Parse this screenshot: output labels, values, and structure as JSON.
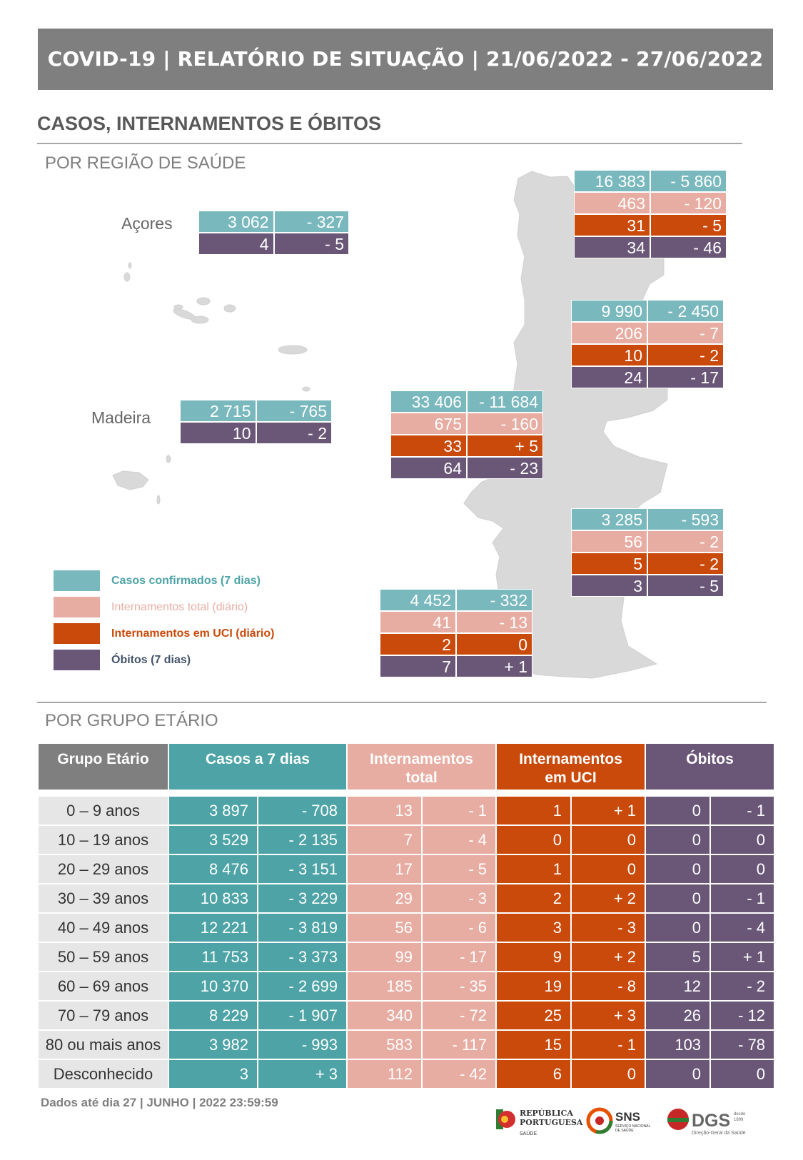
{
  "header": {
    "title": "COVID-19 | RELATÓRIO DE SITUAÇÃO | 21/06/2022 - 27/06/2022"
  },
  "section": {
    "title": "CASOS, INTERNAMENTOS E ÓBITOS"
  },
  "region_section": {
    "title": "POR REGIÃO DE SAÚDE"
  },
  "age_section": {
    "title": "POR GRUPO ETÁRIO"
  },
  "islands": [
    {
      "label": "Açores",
      "rows": [
        {
          "type": "cases",
          "value": "3 062",
          "change": "- 327"
        },
        {
          "type": "deaths",
          "value": "4",
          "change": "- 5"
        }
      ]
    },
    {
      "label": "Madeira",
      "rows": [
        {
          "type": "cases",
          "value": "2 715",
          "change": "- 765"
        },
        {
          "type": "deaths",
          "value": "10",
          "change": "- 2"
        }
      ]
    }
  ],
  "regions": [
    {
      "rows": [
        {
          "type": "cases",
          "value": "16 383",
          "change": "- 5 860"
        },
        {
          "type": "hosp",
          "value": "463",
          "change": "- 120"
        },
        {
          "type": "icu",
          "value": "31",
          "change": "- 5"
        },
        {
          "type": "deaths",
          "value": "34",
          "change": "- 46"
        }
      ]
    },
    {
      "rows": [
        {
          "type": "cases",
          "value": "9 990",
          "change": "- 2 450"
        },
        {
          "type": "hosp",
          "value": "206",
          "change": "- 7"
        },
        {
          "type": "icu",
          "value": "10",
          "change": "- 2"
        },
        {
          "type": "deaths",
          "value": "24",
          "change": "- 17"
        }
      ]
    },
    {
      "rows": [
        {
          "type": "cases",
          "value": "33 406",
          "change": "- 11 684"
        },
        {
          "type": "hosp",
          "value": "675",
          "change": "- 160"
        },
        {
          "type": "icu",
          "value": "33",
          "change": "+ 5"
        },
        {
          "type": "deaths",
          "value": "64",
          "change": "- 23"
        }
      ]
    },
    {
      "rows": [
        {
          "type": "cases",
          "value": "3 285",
          "change": "- 593"
        },
        {
          "type": "hosp",
          "value": "56",
          "change": "- 2"
        },
        {
          "type": "icu",
          "value": "5",
          "change": "- 2"
        },
        {
          "type": "deaths",
          "value": "3",
          "change": "- 5"
        }
      ]
    },
    {
      "rows": [
        {
          "type": "cases",
          "value": "4 452",
          "change": "- 332"
        },
        {
          "type": "hosp",
          "value": "41",
          "change": "- 13"
        },
        {
          "type": "icu",
          "value": "2",
          "change": "0"
        },
        {
          "type": "deaths",
          "value": "7",
          "change": "+ 1"
        }
      ]
    }
  ],
  "legend": [
    {
      "label": "Casos confirmados (7 dias)",
      "color": "#79b8bd",
      "text_color": "#4da3a6"
    },
    {
      "label": "Internamentos total (diário)",
      "color": "#e8ada2",
      "text_color": "#e8ada2"
    },
    {
      "label": "Internamentos em UCI (diário)",
      "color": "#c94a0b",
      "text_color": "#c94a0b"
    },
    {
      "label": "Óbitos (7 dias)",
      "color": "#6a5778",
      "text_color": "#44546a"
    }
  ],
  "age_table": {
    "headers": {
      "group": "Grupo Etário",
      "cases": "Casos a 7 dias",
      "hosp_line1": "Internamentos",
      "hosp_line2": "total",
      "icu_line1": "Internamentos",
      "icu_line2": "em UCI",
      "deaths": "Óbitos"
    },
    "rows": [
      [
        "0 – 9 anos",
        "3 897",
        "- 708",
        "13",
        "- 1",
        "1",
        "+ 1",
        "0",
        "- 1"
      ],
      [
        "10 – 19 anos",
        "3 529",
        "- 2 135",
        "7",
        "- 4",
        "0",
        "0",
        "0",
        "0"
      ],
      [
        "20 – 29 anos",
        "8 476",
        "- 3 151",
        "17",
        "- 5",
        "1",
        "0",
        "0",
        "0"
      ],
      [
        "30 – 39 anos",
        "10 833",
        "- 3 229",
        "29",
        "- 3",
        "2",
        "+ 2",
        "0",
        "- 1"
      ],
      [
        "40 – 49 anos",
        "12 221",
        "- 3 819",
        "56",
        "- 6",
        "3",
        "- 3",
        "0",
        "- 4"
      ],
      [
        "50 – 59 anos",
        "11 753",
        "- 3 373",
        "99",
        "- 17",
        "9",
        "+ 2",
        "5",
        "+ 1"
      ],
      [
        "60 – 69 anos",
        "10 370",
        "- 2 699",
        "185",
        "- 35",
        "19",
        "- 8",
        "12",
        "- 2"
      ],
      [
        "70 – 79 anos",
        "8 229",
        "- 1 907",
        "340",
        "- 72",
        "25",
        "+ 3",
        "26",
        "- 12"
      ],
      [
        "80 ou mais anos",
        "3 982",
        "- 993",
        "583",
        "- 117",
        "15",
        "- 1",
        "103",
        "- 78"
      ],
      [
        "Desconhecido",
        "3",
        "+ 3",
        "112",
        "- 42",
        "6",
        "0",
        "0",
        "0"
      ]
    ]
  },
  "footer": {
    "note": "Dados até dia 27 | JUNHO | 2022 23:59:59",
    "logo1_line1": "REPÚBLICA",
    "logo1_line2": "PORTUGUESA",
    "logo1_line3": "SAÚDE",
    "logo2_main": "SNS",
    "logo2_sub1": "SERVIÇO NACIONAL",
    "logo2_sub2": "DE SAÚDE",
    "logo3_main": "DGS",
    "logo3_small1": "desde",
    "logo3_small2": "1899",
    "logo3_sub": "Direção-Geral da Saúde"
  }
}
